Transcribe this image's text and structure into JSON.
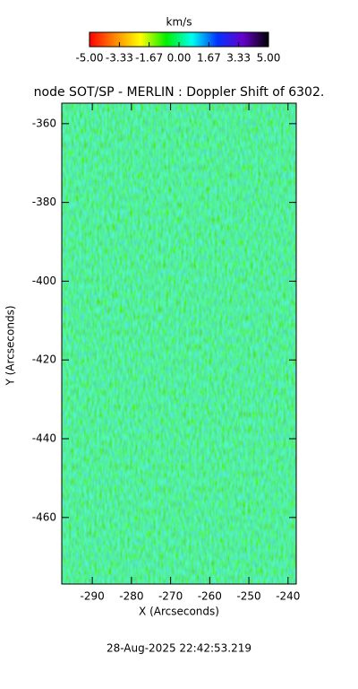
{
  "chart_data": {
    "type": "heatmap",
    "title": "node SOT/SP - MERLIN : Doppler Shift of 6302.",
    "colorbar_title": "km/s",
    "colorbar_lim": [
      -5,
      5
    ],
    "colorbar_ticks": [
      {
        "value": -5,
        "label": "-5.00"
      },
      {
        "value": -3.33,
        "label": "-3.33"
      },
      {
        "value": -1.67,
        "label": "-1.67"
      },
      {
        "value": 0,
        "label": "0.00"
      },
      {
        "value": 1.67,
        "label": "1.67"
      },
      {
        "value": 3.33,
        "label": "3.33"
      },
      {
        "value": 5,
        "label": "5.00"
      }
    ],
    "colormap": [
      "#ff0000",
      "#ff8800",
      "#ffff00",
      "#00ee00",
      "#00ffee",
      "#0033ff",
      "#6600cc",
      "#000000"
    ],
    "x_label": "X (Arcseconds)",
    "y_label": "Y (Arcseconds)",
    "xlim": [
      -297.8,
      -237.9
    ],
    "ylim": [
      -476.9,
      -354.8
    ],
    "xticks": [
      -290,
      -280,
      -270,
      -260,
      -250,
      -240
    ],
    "yticks": [
      -460,
      -440,
      -420,
      -400,
      -380,
      -360
    ],
    "footer": "28-Aug-2025 22:42:53.219"
  }
}
